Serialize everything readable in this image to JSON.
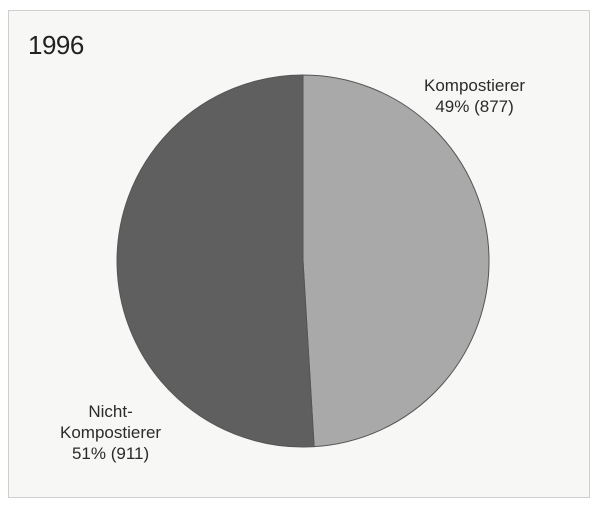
{
  "chart_data": {
    "type": "pie",
    "title": "1996",
    "slices": [
      {
        "category": "Kompostierer",
        "percent": 49,
        "count": 877,
        "color": "#a9a9a9",
        "label_lines": [
          "Kompostierer",
          "49% (877)"
        ]
      },
      {
        "category": "Nicht-Kompostierer",
        "percent": 51,
        "count": 911,
        "color": "#5f5f5f",
        "label_lines": [
          "Nicht-",
          "Kompostierer",
          "51% (911)"
        ]
      }
    ]
  }
}
